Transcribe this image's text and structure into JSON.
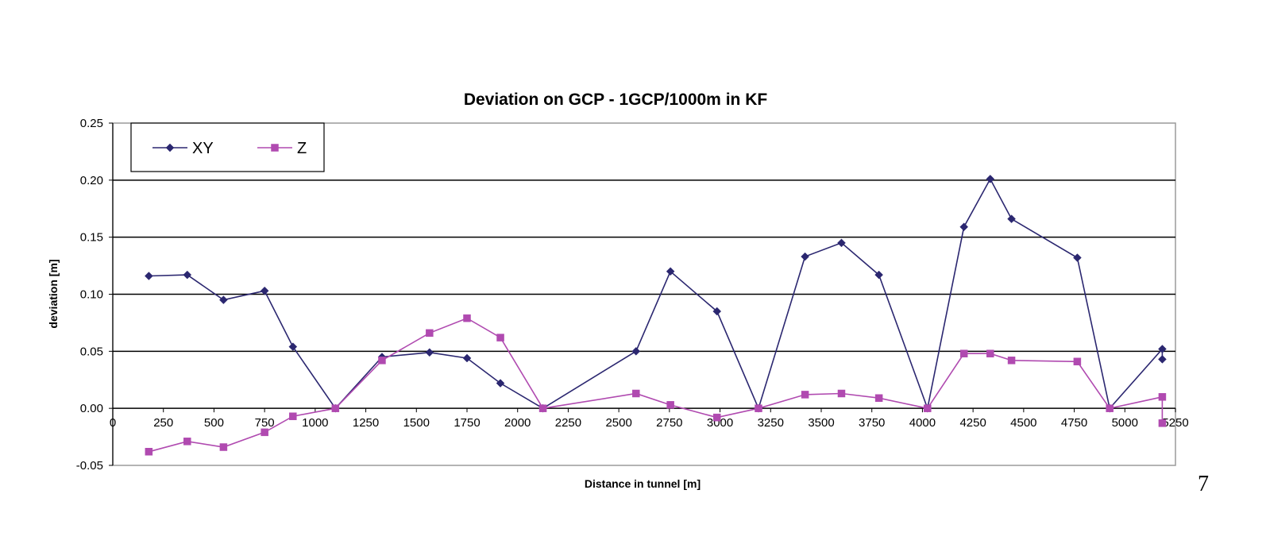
{
  "page": {
    "page_number": "7"
  },
  "chart_data": {
    "type": "line",
    "title": "Deviation on GCP - 1GCP/1000m in KF",
    "xlabel": "Distance in tunnel [m]",
    "ylabel": "deviation [m]",
    "xlim": [
      0,
      5250
    ],
    "ylim": [
      -0.05,
      0.25
    ],
    "x_ticks": [
      "0",
      "250",
      "500",
      "750",
      "1000",
      "1250",
      "1500",
      "1750",
      "2000",
      "2250",
      "2500",
      "2750",
      "3000",
      "3250",
      "3500",
      "3750",
      "4000",
      "4250",
      "4500",
      "4750",
      "5000",
      "5250"
    ],
    "y_ticks": [
      "-0.05",
      "0.00",
      "0.05",
      "0.10",
      "0.15",
      "0.20",
      "0.25"
    ],
    "grid": "horizontal",
    "legend_position": "top-left",
    "colors": {
      "XY": "#2b2770",
      "Z": "#b04ab0"
    },
    "series": [
      {
        "name": "XY",
        "marker": "diamond",
        "points": [
          [
            178,
            0.116
          ],
          [
            368,
            0.117
          ],
          [
            547,
            0.095
          ],
          [
            750,
            0.103
          ],
          [
            890,
            0.054
          ],
          [
            1100,
            0.0
          ],
          [
            1330,
            0.045
          ],
          [
            1565,
            0.049
          ],
          [
            1750,
            0.044
          ],
          [
            1915,
            0.022
          ],
          [
            2125,
            0.0
          ],
          [
            2585,
            0.05
          ],
          [
            2755,
            0.12
          ],
          [
            2985,
            0.085
          ],
          [
            3190,
            0.0
          ],
          [
            3420,
            0.133
          ],
          [
            3600,
            0.145
          ],
          [
            3785,
            0.117
          ],
          [
            4025,
            0.0
          ],
          [
            4205,
            0.159
          ],
          [
            4335,
            0.201
          ],
          [
            4440,
            0.166
          ],
          [
            4765,
            0.132
          ],
          [
            4925,
            0.0
          ],
          [
            5185,
            0.052
          ],
          [
            5185,
            0.043
          ]
        ]
      },
      {
        "name": "Z",
        "marker": "square",
        "points": [
          [
            178,
            -0.038
          ],
          [
            368,
            -0.029
          ],
          [
            547,
            -0.034
          ],
          [
            750,
            -0.021
          ],
          [
            890,
            -0.007
          ],
          [
            1100,
            0.0
          ],
          [
            1330,
            0.042
          ],
          [
            1565,
            0.066
          ],
          [
            1750,
            0.079
          ],
          [
            1915,
            0.062
          ],
          [
            2125,
            0.0
          ],
          [
            2585,
            0.013
          ],
          [
            2755,
            0.003
          ],
          [
            2985,
            -0.008
          ],
          [
            3190,
            0.0
          ],
          [
            3420,
            0.012
          ],
          [
            3600,
            0.013
          ],
          [
            3785,
            0.009
          ],
          [
            4025,
            0.0
          ],
          [
            4205,
            0.048
          ],
          [
            4335,
            0.048
          ],
          [
            4440,
            0.042
          ],
          [
            4765,
            0.041
          ],
          [
            4925,
            0.0
          ],
          [
            5185,
            0.01
          ],
          [
            5185,
            -0.013
          ]
        ]
      }
    ]
  }
}
